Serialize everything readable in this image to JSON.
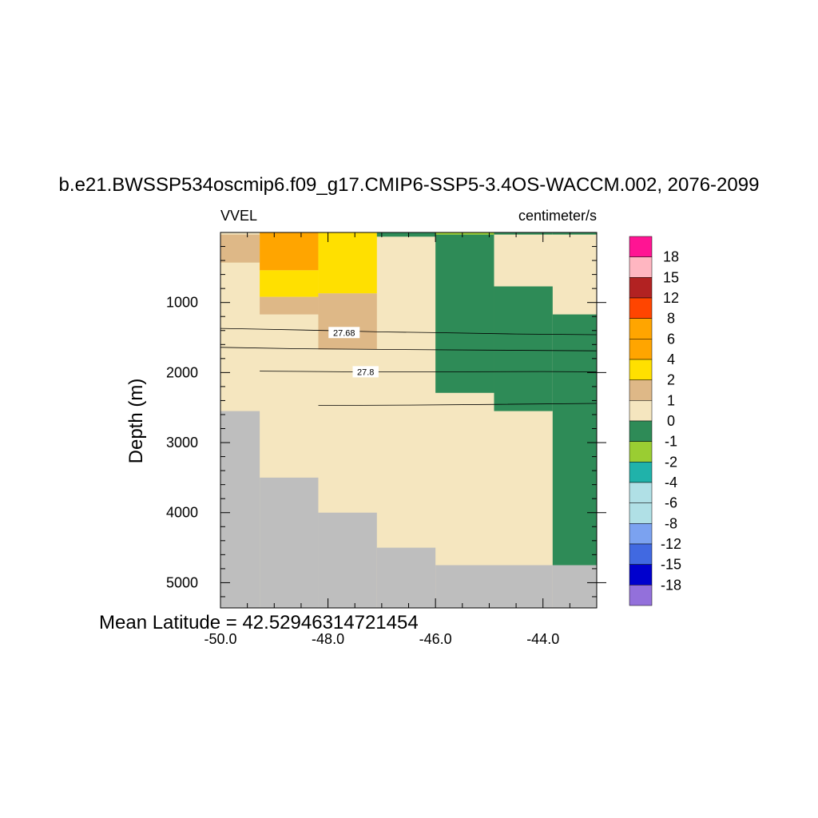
{
  "title": "b.e21.BWSSP534oscmip6.f09_g17.CMIP6-SSP5-3.4OS-WACCM.002, 2076-2099",
  "left_string": "VVEL",
  "right_string": "centimeter/s",
  "ylabel": "Depth (m)",
  "note": "Mean Latitude = 42.52946314721454",
  "chart_data": {
    "type": "heatmap",
    "title": "b.e21.BWSSP534oscmip6.f09_g17.CMIP6-SSP5-3.4OS-WACCM.002, 2076-2099",
    "variable": "VVEL",
    "units": "centimeter/s",
    "xlabel": "",
    "ylabel": "Depth (m)",
    "xlim": [
      -50.0,
      -43.0
    ],
    "ylim": [
      5360,
      0
    ],
    "x_ticks": [
      -50.0,
      -48.0,
      -46.0,
      -44.0
    ],
    "x_tick_labels": [
      "-50.0",
      "-48.0",
      "-46.0",
      "-44.0"
    ],
    "y_ticks": [
      1000,
      2000,
      3000,
      4000,
      5000
    ],
    "y_tick_labels": [
      "1000",
      "2000",
      "3000",
      "4000",
      "5000"
    ],
    "missing_color": "#bebebe",
    "colorbar": {
      "labels": [
        "18",
        "15",
        "12",
        "8",
        "6",
        "4",
        "2",
        "1",
        "0",
        "-1",
        "-2",
        "-4",
        "-6",
        "-8",
        "-12",
        "-15",
        "-18"
      ],
      "colors": [
        "#ff1493",
        "#ffb6c1",
        "#b22222",
        "#ff4500",
        "#ffa500",
        "#ffa500",
        "#ffe000",
        "#deb887",
        "#f5e6bf",
        "#2e8b57",
        "#9acd32",
        "#20b2aa",
        "#b0e0e6",
        "#b0e0e6",
        "#7ba2f0",
        "#4169e1",
        "#0000cd",
        "#9370db"
      ]
    },
    "columns": [
      {
        "x0": -50.0,
        "x1": -49.27,
        "bottom_depth": 2550,
        "cells": [
          {
            "d0": 30,
            "d1": 430,
            "color": "#deb887"
          }
        ]
      },
      {
        "x0": -49.27,
        "x1": -48.18,
        "bottom_depth": 3500,
        "cells": [
          {
            "d0": 0,
            "d1": 540,
            "color": "#ffa500"
          },
          {
            "d0": 540,
            "d1": 920,
            "color": "#ffe000"
          },
          {
            "d0": 920,
            "d1": 1170,
            "color": "#deb887"
          }
        ]
      },
      {
        "x0": -48.18,
        "x1": -47.09,
        "bottom_depth": 4000,
        "cells": [
          {
            "d0": 0,
            "d1": 870,
            "color": "#ffe000"
          },
          {
            "d0": 870,
            "d1": 1670,
            "color": "#deb887"
          }
        ]
      },
      {
        "x0": -47.09,
        "x1": -46.0,
        "bottom_depth": 4500,
        "cells": [
          {
            "d0": 0,
            "d1": 60,
            "color": "#2e8b57"
          }
        ]
      },
      {
        "x0": -46.0,
        "x1": -44.91,
        "bottom_depth": 4750,
        "cells": [
          {
            "d0": 30,
            "d1": 2290,
            "color": "#2e8b57"
          },
          {
            "d0": 0,
            "d1": 30,
            "color": "#9acd32"
          }
        ]
      },
      {
        "x0": -44.91,
        "x1": -43.82,
        "bottom_depth": 4750,
        "cells": [
          {
            "d0": 0,
            "d1": 30,
            "color": "#2e8b57"
          },
          {
            "d0": 770,
            "d1": 2550,
            "color": "#2e8b57"
          }
        ]
      },
      {
        "x0": -43.82,
        "x1": -43.0,
        "bottom_depth": 4750,
        "cells": [
          {
            "d0": 0,
            "d1": 30,
            "color": "#2e8b57"
          },
          {
            "d0": 1170,
            "d1": 4750,
            "color": "#2e8b57"
          }
        ]
      }
    ],
    "contours": [
      {
        "label": "27.68",
        "label_x": -47.7,
        "label_depth": 1440,
        "points": [
          [
            -50.0,
            1370
          ],
          [
            -49.3,
            1380
          ],
          [
            -48.0,
            1400
          ],
          [
            -47.0,
            1420
          ],
          [
            -46.0,
            1430
          ],
          [
            -44.5,
            1450
          ],
          [
            -43.0,
            1460
          ]
        ]
      },
      {
        "label": "",
        "points": [
          [
            -50.0,
            1640
          ],
          [
            -48.5,
            1660
          ],
          [
            -47.0,
            1670
          ],
          [
            -45.0,
            1680
          ],
          [
            -43.0,
            1690
          ]
        ]
      },
      {
        "label": "27.8",
        "label_x": -47.3,
        "label_depth": 2000,
        "points": [
          [
            -49.27,
            1980
          ],
          [
            -47.5,
            1990
          ],
          [
            -46.0,
            1990
          ],
          [
            -44.0,
            1985
          ],
          [
            -43.0,
            1990
          ]
        ]
      },
      {
        "label": "",
        "points": [
          [
            -48.18,
            2470
          ],
          [
            -46.5,
            2465
          ],
          [
            -45.0,
            2455
          ],
          [
            -43.0,
            2440
          ]
        ]
      }
    ]
  }
}
